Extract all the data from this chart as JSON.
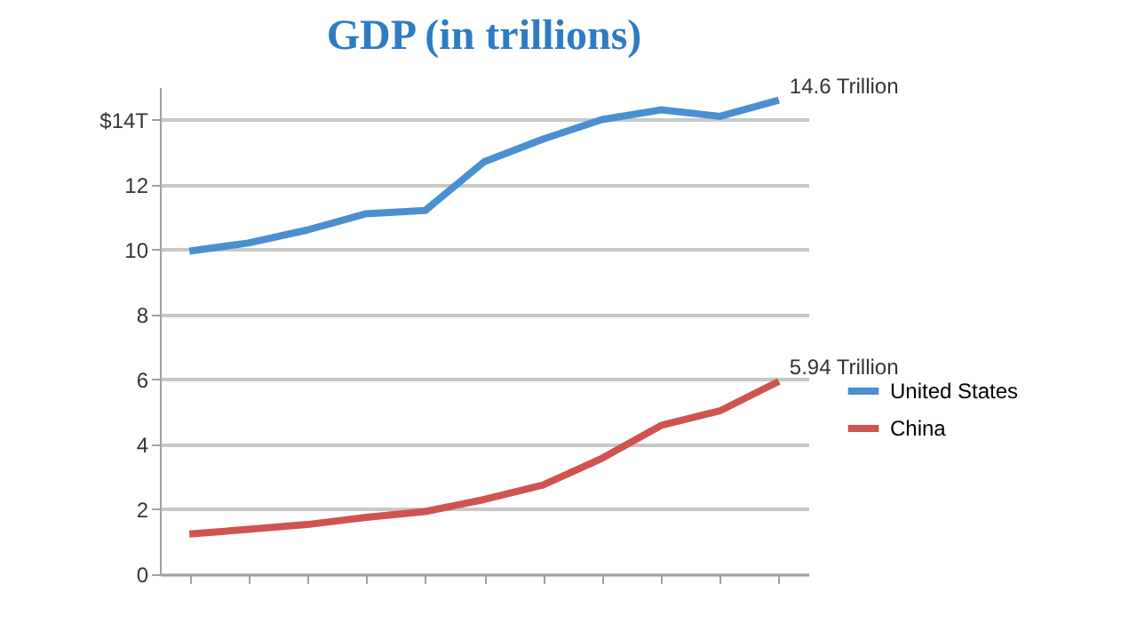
{
  "chart_data": {
    "type": "line",
    "title": "GDP (in trillions)",
    "categories": [
      null,
      null,
      null,
      null,
      null,
      null,
      null,
      null,
      null,
      null,
      null
    ],
    "series": [
      {
        "name": "United States",
        "color": "#4a8fd0",
        "values": [
          9.95,
          10.2,
          10.6,
          11.1,
          11.2,
          12.7,
          13.4,
          14.0,
          14.3,
          14.1,
          14.6
        ],
        "value_labels": [
          null,
          null,
          null,
          null,
          null,
          null,
          null,
          null,
          null,
          null,
          "14.6 Trillion"
        ]
      },
      {
        "name": "China",
        "color": "#cf5450",
        "values": [
          1.24,
          1.38,
          1.53,
          1.75,
          1.93,
          2.3,
          2.75,
          3.57,
          4.58,
          5.03,
          5.94
        ],
        "value_labels": [
          null,
          null,
          null,
          null,
          null,
          null,
          null,
          null,
          null,
          null,
          "5.94 Trillion"
        ]
      }
    ],
    "ylim": [
      0,
      15
    ],
    "yticks": [
      0,
      2,
      4,
      6,
      8,
      10,
      12,
      {
        "value": 14,
        "label": "$14T"
      }
    ],
    "grid": "y",
    "legend": "right",
    "marker": "none"
  }
}
